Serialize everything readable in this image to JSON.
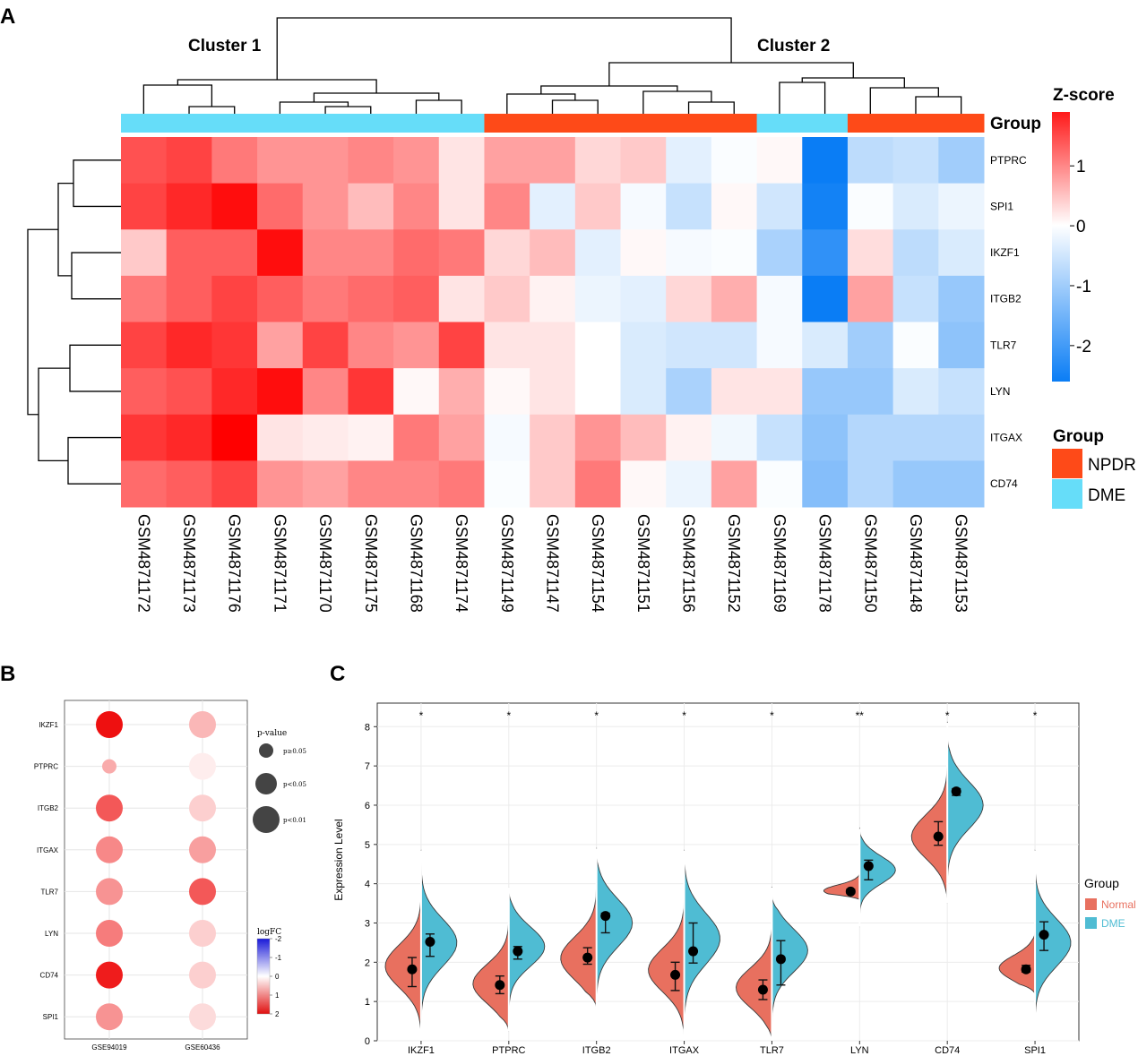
{
  "panels": {
    "a": "A",
    "b": "B",
    "c": "C"
  },
  "heatmap": {
    "clusters": [
      "Cluster 1",
      "Cluster 2"
    ],
    "group_title": "Group",
    "zscore_title": "Z-score",
    "zscore_ticks": [
      "1",
      "0",
      "-1",
      "-2"
    ],
    "zscore_tick_values": [
      1,
      0,
      -1,
      -2
    ],
    "zscore_range": [
      -2.6,
      1.9
    ],
    "legend_group_title": "Group",
    "legend_groups": [
      {
        "name": "NPDR",
        "color": "#fe4a18"
      },
      {
        "name": "DME",
        "color": "#66ddf9"
      }
    ],
    "colors": {
      "high": "#ff0000",
      "mid": "#ffffff",
      "low": "#0a7df5",
      "npdr": "#fe4a18",
      "dme": "#66ddf9"
    },
    "samples": [
      "GSM4871172",
      "GSM4871173",
      "GSM4871176",
      "GSM4871171",
      "GSM4871170",
      "GSM4871175",
      "GSM4871168",
      "GSM4871174",
      "GSM4871149",
      "GSM4871147",
      "GSM4871154",
      "GSM4871151",
      "GSM4871156",
      "GSM4871152",
      "GSM4871169",
      "GSM4871178",
      "GSM4871150",
      "GSM4871148",
      "GSM4871153"
    ],
    "sample_groups": [
      "DME",
      "DME",
      "DME",
      "DME",
      "DME",
      "DME",
      "DME",
      "DME",
      "NPDR",
      "NPDR",
      "NPDR",
      "NPDR",
      "NPDR",
      "NPDR",
      "DME",
      "DME",
      "NPDR",
      "NPDR",
      "NPDR"
    ],
    "genes": [
      "PTPRC",
      "SPI1",
      "IKZF1",
      "ITGB2",
      "TLR7",
      "LYN",
      "ITGAX",
      "CD74"
    ],
    "values": [
      [
        1.3,
        1.4,
        1.0,
        0.8,
        0.8,
        0.9,
        0.8,
        0.2,
        0.7,
        0.7,
        0.3,
        0.4,
        -0.3,
        -0.05,
        0.05,
        -2.6,
        -0.7,
        -0.6,
        -1.0
      ],
      [
        1.4,
        1.6,
        1.8,
        1.1,
        0.8,
        0.5,
        0.9,
        0.2,
        0.9,
        -0.3,
        0.4,
        -0.1,
        -0.6,
        0.05,
        -0.5,
        -2.5,
        -0.05,
        -0.4,
        -0.2
      ],
      [
        0.4,
        1.2,
        1.2,
        1.8,
        0.9,
        0.9,
        1.1,
        1.0,
        0.3,
        0.5,
        -0.3,
        0.05,
        -0.1,
        -0.05,
        -0.9,
        -2.2,
        0.25,
        -0.7,
        -0.4
      ],
      [
        1.0,
        1.2,
        1.4,
        1.2,
        1.0,
        1.1,
        1.2,
        0.2,
        0.4,
        0.1,
        -0.2,
        -0.3,
        0.3,
        0.6,
        -0.1,
        -2.6,
        0.7,
        -0.6,
        -1.1
      ],
      [
        1.4,
        1.6,
        1.5,
        0.7,
        1.4,
        0.9,
        0.8,
        1.4,
        0.2,
        0.2,
        0.0,
        -0.4,
        -0.5,
        -0.5,
        -0.1,
        -0.4,
        -1.0,
        -0.05,
        -1.2
      ],
      [
        1.2,
        1.3,
        1.6,
        1.8,
        0.9,
        1.5,
        0.05,
        0.6,
        0.05,
        0.2,
        0.0,
        -0.4,
        -0.9,
        0.2,
        0.2,
        -1.1,
        -1.1,
        -0.4,
        -0.6
      ],
      [
        1.5,
        1.6,
        1.9,
        0.2,
        0.15,
        0.1,
        1.0,
        0.7,
        -0.1,
        0.4,
        0.8,
        0.5,
        0.1,
        -0.15,
        -0.6,
        -1.2,
        -0.8,
        -0.8,
        -0.8
      ],
      [
        1.1,
        1.2,
        1.4,
        0.8,
        0.7,
        0.9,
        0.9,
        1.0,
        -0.05,
        0.4,
        1.0,
        0.05,
        -0.2,
        0.7,
        -0.05,
        -1.3,
        -0.8,
        -1.1,
        -1.1
      ]
    ]
  },
  "bubble": {
    "genes": [
      "IKZF1",
      "PTPRC",
      "ITGB2",
      "ITGAX",
      "TLR7",
      "LYN",
      "CD74",
      "SPI1"
    ],
    "datasets": [
      "GSE94019",
      "GSE60436"
    ],
    "logfc": [
      [
        2.0,
        0.6
      ],
      [
        0.7,
        0.15
      ],
      [
        1.4,
        0.4
      ],
      [
        1.0,
        0.8
      ],
      [
        0.9,
        1.4
      ],
      [
        1.1,
        0.4
      ],
      [
        1.9,
        0.4
      ],
      [
        0.9,
        0.3
      ]
    ],
    "pvalue_class": [
      [
        3,
        3
      ],
      [
        1,
        3
      ],
      [
        3,
        3
      ],
      [
        3,
        3
      ],
      [
        3,
        3
      ],
      [
        3,
        3
      ],
      [
        3,
        3
      ],
      [
        3,
        3
      ]
    ],
    "size_legend_title": "p-value",
    "size_legend": [
      "p≥0.05",
      "p<0.05",
      "p<0.01"
    ],
    "color_legend_title": "logFC",
    "color_ticks": [
      "-2",
      "-1",
      "0",
      "1",
      "2"
    ],
    "color_tick_values": [
      -2,
      -1,
      0,
      1,
      2
    ]
  },
  "violin": {
    "ylabel": "Expression Level",
    "ylim": [
      0,
      8.6
    ],
    "yticks": [
      "0",
      "1",
      "2",
      "3",
      "4",
      "5",
      "6",
      "7",
      "8"
    ],
    "ytick_values": [
      0,
      1,
      2,
      3,
      4,
      5,
      6,
      7,
      8
    ],
    "categories": [
      "IKZF1",
      "PTPRC",
      "ITGB2",
      "ITGAX",
      "TLR7",
      "LYN",
      "CD74",
      "SPI1"
    ],
    "significance": [
      "*",
      "*",
      "*",
      "*",
      "*",
      "**",
      "*",
      "*"
    ],
    "legend_title": "Group",
    "groups": [
      {
        "name": "Normal",
        "color": "#e8705f"
      },
      {
        "name": "DME",
        "color": "#4fbcd3"
      }
    ],
    "normal": [
      {
        "lo": 0.0,
        "hi": 3.95,
        "peak": 1.9,
        "spread": 0.55,
        "median": 1.82,
        "q1": 1.38,
        "q3": 2.12
      },
      {
        "lo": 0.25,
        "hi": 3.9,
        "peak": 1.45,
        "spread": 0.5,
        "median": 1.42,
        "q1": 1.2,
        "q3": 1.65
      },
      {
        "lo": 0.85,
        "hi": 4.9,
        "peak": 2.1,
        "spread": 0.55,
        "median": 2.12,
        "q1": 1.95,
        "q3": 2.37
      },
      {
        "lo": 0.0,
        "hi": 3.85,
        "peak": 1.8,
        "spread": 0.55,
        "median": 1.68,
        "q1": 1.28,
        "q3": 2.0
      },
      {
        "lo": 0.0,
        "hi": 3.9,
        "peak": 1.35,
        "spread": 0.5,
        "median": 1.3,
        "q1": 1.05,
        "q3": 1.55
      },
      {
        "lo": 3.6,
        "hi": 4.3,
        "peak": 3.82,
        "spread": 0.15,
        "median": 3.8,
        "q1": 3.75,
        "q3": 3.86
      },
      {
        "lo": 3.5,
        "hi": 8.1,
        "peak": 5.2,
        "spread": 0.55,
        "median": 5.2,
        "q1": 4.98,
        "q3": 5.58
      },
      {
        "lo": 1.2,
        "hi": 2.8,
        "peak": 1.85,
        "spread": 0.32,
        "median": 1.82,
        "q1": 1.75,
        "q3": 1.92
      }
    ],
    "dme": [
      {
        "lo": 0.0,
        "hi": 4.85,
        "peak": 2.5,
        "spread": 0.6,
        "median": 2.52,
        "q1": 2.15,
        "q3": 2.72
      },
      {
        "lo": 0.65,
        "hi": 3.85,
        "peak": 2.4,
        "spread": 0.5,
        "median": 2.28,
        "q1": 2.08,
        "q3": 2.4
      },
      {
        "lo": 0.0,
        "hi": 4.8,
        "peak": 3.0,
        "spread": 0.6,
        "median": 3.18,
        "q1": 2.75,
        "q3": 3.25
      },
      {
        "lo": 0.0,
        "hi": 4.85,
        "peak": 2.6,
        "spread": 0.65,
        "median": 2.28,
        "q1": 1.98,
        "q3": 3.0
      },
      {
        "lo": 0.0,
        "hi": 3.7,
        "peak": 2.3,
        "spread": 0.55,
        "median": 2.08,
        "q1": 1.42,
        "q3": 2.55
      },
      {
        "lo": 2.9,
        "hi": 5.4,
        "peak": 4.35,
        "spread": 0.35,
        "median": 4.45,
        "q1": 4.1,
        "q3": 4.6
      },
      {
        "lo": 3.8,
        "hi": 7.8,
        "peak": 6.0,
        "spread": 0.6,
        "median": 6.35,
        "q1": 6.25,
        "q3": 6.42
      },
      {
        "lo": 0.0,
        "hi": 4.85,
        "peak": 2.5,
        "spread": 0.6,
        "median": 2.7,
        "q1": 2.3,
        "q3": 3.03
      }
    ]
  }
}
